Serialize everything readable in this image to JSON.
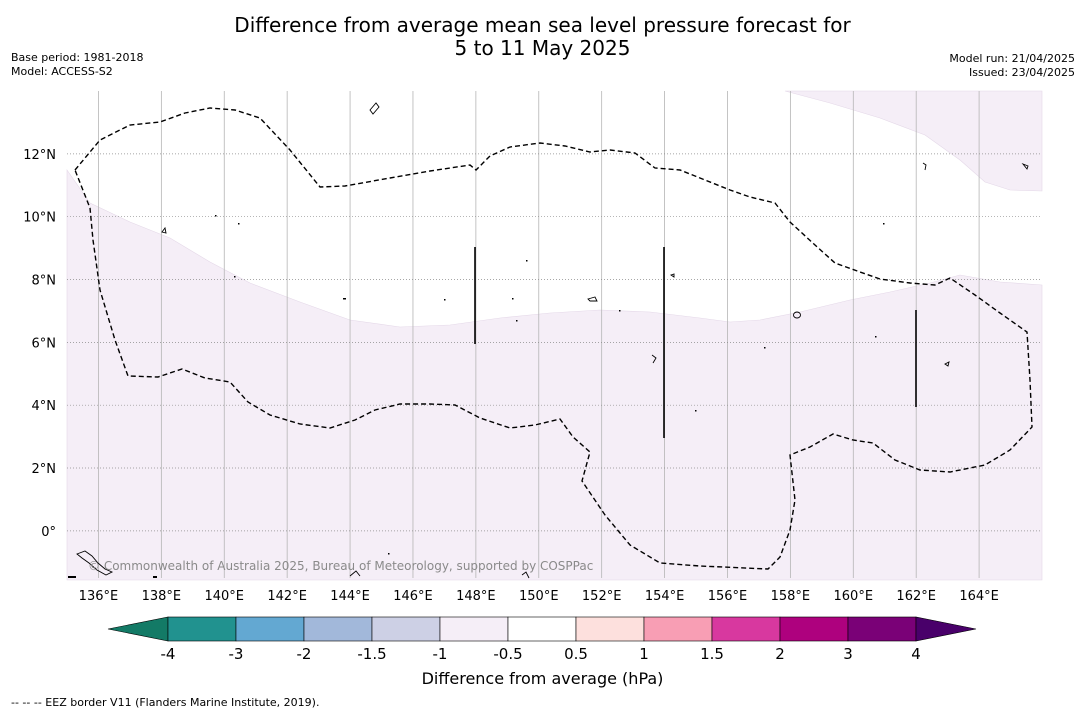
{
  "title_line1": "Difference from average mean sea level pressure forecast for",
  "title_line2": "5 to 11 May 2025",
  "meta_left": [
    "Base period: 1981-2018",
    "Model: ACCESS-S2"
  ],
  "meta_right": [
    "Model run: 21/04/2025",
    "Issued: 23/04/2025"
  ],
  "copyright": "© Commonwealth of Australia 2025, Bureau of Meteorology, supported by COSPPac",
  "footnote": "--  --  -- EEZ border V11 (Flanders Marine Institute, 2019).",
  "map": {
    "lon_range": [
      135,
      166
    ],
    "lat_range": [
      -1.5,
      14
    ],
    "lon_ticks": [
      "136°E",
      "138°E",
      "140°E",
      "142°E",
      "144°E",
      "146°E",
      "148°E",
      "150°E",
      "152°E",
      "154°E",
      "156°E",
      "158°E",
      "160°E",
      "162°E",
      "164°E"
    ],
    "lat_ticks": [
      "12°N",
      "10°N",
      "8°N",
      "6°N",
      "4°N",
      "2°N",
      "0°"
    ],
    "shaded_category": "-1 to -0.5",
    "shade_color": "#f5eef7"
  },
  "colorbar": {
    "title": "Difference from average (hPa)",
    "labels": [
      "-4",
      "-3",
      "-2",
      "-1.5",
      "-1",
      "-0.5",
      "0.5",
      "1",
      "1.5",
      "2",
      "3",
      "4"
    ],
    "colors": [
      "#137a66",
      "#21928f",
      "#63a8d2",
      "#a2b8da",
      "#cdd0e5",
      "#f5eef7",
      "#ffffff",
      "#fde0dd",
      "#f89eb4",
      "#d8389f",
      "#ae017e",
      "#7a0177",
      "#49006a"
    ]
  }
}
